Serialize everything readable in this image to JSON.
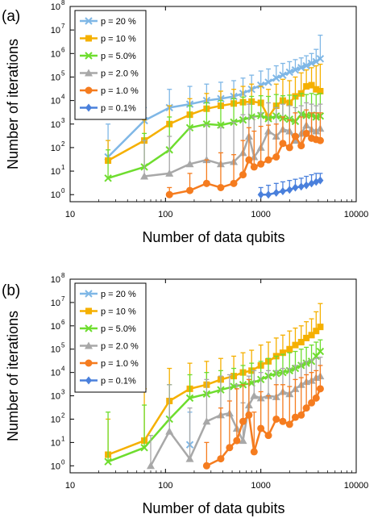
{
  "panels": [
    {
      "panel_label": "(a)",
      "chart_data": {
        "type": "line",
        "xlabel": "Number of data qubits",
        "ylabel": "Number of iterations",
        "xscale": "log",
        "yscale": "log",
        "xlim": [
          10,
          10000
        ],
        "ylim": [
          0.5,
          100000000
        ],
        "x_ticks": [
          10,
          100,
          1000,
          10000
        ],
        "x_tick_labels": [
          "10",
          "100",
          "1000",
          "10000"
        ],
        "y_ticks": [
          1,
          10,
          100,
          1000,
          10000,
          100000,
          1000000,
          10000000,
          100000000
        ],
        "y_tick_bases": [
          "10",
          "10",
          "10",
          "10",
          "10",
          "10",
          "10",
          "10",
          "10"
        ],
        "y_tick_exps": [
          "0",
          "1",
          "2",
          "3",
          "4",
          "5",
          "6",
          "7",
          "8"
        ],
        "legend_position": "top-left",
        "series": [
          {
            "name": "p = 20 %",
            "color": "#7fb7e6",
            "marker": "x",
            "x": [
              25,
              60,
              110,
              180,
              270,
              380,
              520,
              650,
              800,
              1000,
              1200,
              1450,
              1700,
              2000,
              2300,
              2650,
              3000,
              3400,
              3800,
              4200
            ],
            "y": [
              40,
              1400,
              5000,
              7000,
              10000,
              12000,
              15000,
              20000,
              30000,
              45000,
              60000,
              90000,
              120000,
              160000,
              200000,
              250000,
              300000,
              380000,
              450000,
              600000
            ],
            "err_high": [
              1000,
              5000,
              30000,
              40000,
              50000,
              60000,
              70000,
              90000,
              120000,
              180000,
              220000,
              300000,
              380000,
              450000,
              550000,
              650000,
              800000,
              1000000,
              1500000,
              6000000
            ]
          },
          {
            "name": "p = 10 %",
            "color": "#f5b000",
            "marker": "square",
            "x": [
              25,
              60,
              110,
              180,
              270,
              380,
              520,
              650,
              800,
              1000,
              1200,
              1450,
              1700,
              2000,
              2300,
              2650,
              3000,
              3400,
              3800,
              4200
            ],
            "y": [
              28,
              200,
              1000,
              2500,
              4500,
              6000,
              7500,
              8500,
              9000,
              8000,
              2000,
              6000,
              10000,
              8000,
              15000,
              20000,
              40000,
              45000,
              30000,
              25000
            ],
            "err_high": [
              200,
              1500,
              6000,
              12000,
              20000,
              25000,
              30000,
              40000,
              50000,
              40000,
              30000,
              50000,
              80000,
              70000,
              100000,
              150000,
              200000,
              250000,
              300000,
              350000
            ]
          },
          {
            "name": "p = 5.0%",
            "color": "#6edd2e",
            "marker": "x",
            "x": [
              25,
              60,
              110,
              180,
              270,
              380,
              520,
              650,
              800,
              1000,
              1200,
              1450,
              1700,
              2000,
              2300,
              2650,
              3000,
              3400,
              3800,
              4200
            ],
            "y": [
              5,
              15,
              80,
              700,
              1000,
              900,
              1200,
              1500,
              2000,
              2300,
              1700,
              2200,
              1800,
              1600,
              1300,
              2600,
              2300,
              2400,
              2000,
              2200
            ],
            "err_high": [
              80,
              400,
              2000,
              6000,
              8000,
              10000,
              12000,
              14000,
              15000,
              16000,
              15000,
              18000,
              16000,
              17000,
              16000,
              20000,
              18000,
              20000,
              18000,
              20000
            ]
          },
          {
            "name": "p = 2.0 %",
            "color": "#a8a8a8",
            "marker": "triangle",
            "x": [
              60,
              110,
              180,
              270,
              380,
              520,
              650,
              750,
              850,
              1000,
              1200,
              1450,
              1700,
              2000,
              2300,
              2650,
              3000,
              3400,
              3800,
              4200
            ],
            "y": [
              6,
              8,
              20,
              30,
              20,
              25,
              60,
              300,
              40,
              100,
              500,
              300,
              600,
              500,
              200,
              400,
              900,
              600,
              500,
              650
            ],
            "err_high": [
              200,
              300,
              600,
              900,
              700,
              1200,
              2500,
              7000,
              2000,
              3000,
              8000,
              5000,
              7000,
              6000,
              5000,
              6000,
              8000,
              7000,
              6000,
              7000
            ]
          },
          {
            "name": "p = 1.0 %",
            "color": "#f57c1f",
            "marker": "circle",
            "x": [
              110,
              180,
              270,
              380,
              520,
              650,
              750,
              850,
              1000,
              1200,
              1450,
              1700,
              2000,
              2300,
              2650,
              3000,
              3400,
              3800,
              4200
            ],
            "y": [
              1,
              1.5,
              3,
              2,
              3,
              7,
              30,
              15,
              20,
              30,
              40,
              150,
              100,
              300,
              120,
              400,
              250,
              220,
              200
            ],
            "err_high": [
              2,
              8,
              30,
              60,
              50,
              200,
              700,
              500,
              800,
              900,
              1000,
              2000,
              1500,
              3000,
              2000,
              4000,
              3000,
              3000,
              3000
            ]
          },
          {
            "name": "p = 0.1%",
            "color": "#4a80dc",
            "marker": "diamond",
            "x": [
              1000,
              1200,
              1450,
              1700,
              2000,
              2300,
              2650,
              3000,
              3400,
              3800,
              4200
            ],
            "y": [
              1,
              1,
              1.2,
              1.4,
              1.6,
              2,
              2.2,
              2.5,
              3,
              3.5,
              4
            ],
            "err_high": [
              2,
              2.5,
              3,
              3.5,
              4,
              4.5,
              5,
              6,
              7,
              8,
              8
            ]
          }
        ]
      }
    },
    {
      "panel_label": "(b)",
      "chart_data": {
        "type": "line",
        "xlabel": "Number of data qubits",
        "ylabel": "Number of iterations",
        "xscale": "log",
        "yscale": "log",
        "xlim": [
          10,
          10000
        ],
        "ylim": [
          0.5,
          100000000
        ],
        "x_ticks": [
          10,
          100,
          1000,
          10000
        ],
        "x_tick_labels": [
          "10",
          "100",
          "1000",
          "10000"
        ],
        "y_ticks": [
          1,
          10,
          100,
          1000,
          10000,
          100000,
          1000000,
          10000000,
          100000000
        ],
        "y_tick_bases": [
          "10",
          "10",
          "10",
          "10",
          "10",
          "10",
          "10",
          "10",
          "10"
        ],
        "y_tick_exps": [
          "0",
          "1",
          "2",
          "3",
          "4",
          "5",
          "6",
          "7",
          "8"
        ],
        "legend_position": "top-left",
        "series": [
          {
            "name": "p = 20 %",
            "color": "#7fb7e6",
            "marker": "x",
            "x": [
              180
            ],
            "y": [
              8
            ],
            "err_high": [
              200
            ]
          },
          {
            "name": "p = 10 %",
            "color": "#f5b000",
            "marker": "square",
            "x": [
              25,
              60,
              110,
              180,
              270,
              380,
              520,
              650,
              800,
              1000,
              1200,
              1450,
              1700,
              2000,
              2300,
              2650,
              3000,
              3400,
              3800,
              4200
            ],
            "y": [
              3,
              12,
              600,
              2000,
              3000,
              5000,
              7000,
              10000,
              12000,
              20000,
              30000,
              50000,
              70000,
              100000,
              150000,
              200000,
              300000,
              400000,
              600000,
              900000
            ],
            "err_high": [
              100,
              2000,
              15000,
              25000,
              30000,
              40000,
              50000,
              70000,
              90000,
              150000,
              200000,
              300000,
              400000,
              600000,
              800000,
              1000000,
              1500000,
              2000000,
              4000000,
              9000000
            ]
          },
          {
            "name": "p = 5.0%",
            "color": "#6edd2e",
            "marker": "x",
            "x": [
              25,
              60,
              110,
              180,
              270,
              380,
              520,
              650,
              800,
              1000,
              1200,
              1450,
              1700,
              2000,
              2300,
              2650,
              3000,
              3400,
              3800,
              4200
            ],
            "y": [
              1.5,
              6,
              100,
              800,
              1200,
              1800,
              2500,
              3000,
              3500,
              5000,
              7000,
              9000,
              10000,
              12000,
              15000,
              20000,
              25000,
              30000,
              50000,
              80000
            ],
            "err_high": [
              200,
              400,
              3000,
              8000,
              10000,
              12000,
              15000,
              20000,
              25000,
              30000,
              40000,
              50000,
              60000,
              70000,
              80000,
              100000,
              120000,
              150000,
              200000,
              250000
            ]
          },
          {
            "name": "p = 2.0 %",
            "color": "#a8a8a8",
            "marker": "triangle",
            "x": [
              70,
              110,
              180,
              270,
              380,
              470,
              560,
              650,
              750,
              850,
              1000,
              1200,
              1450,
              1700,
              2000,
              2300,
              2650,
              3000,
              3400,
              3800,
              4200
            ],
            "y": [
              1,
              30,
              2,
              80,
              150,
              180,
              40,
              12,
              400,
              1000,
              800,
              1000,
              900,
              1500,
              1200,
              2000,
              3000,
              4000,
              4500,
              6000,
              7000
            ],
            "err_high": [
              20,
              3000,
              300,
              5000,
              7000,
              8000,
              3000,
              500,
              7000,
              12000,
              10000,
              12000,
              12000,
              15000,
              15000,
              20000,
              25000,
              30000,
              35000,
              40000,
              45000
            ]
          },
          {
            "name": "p = 1.0 %",
            "color": "#f57c1f",
            "marker": "circle",
            "x": [
              270,
              380,
              470,
              560,
              650,
              750,
              850,
              1000,
              1200,
              1450,
              1700,
              2000,
              2300,
              2650,
              3000,
              3400,
              3800,
              4200
            ],
            "y": [
              1,
              2,
              6,
              12,
              80,
              150,
              4,
              40,
              20,
              100,
              80,
              60,
              120,
              150,
              300,
              500,
              800,
              2000
            ],
            "err_high": [
              10,
              300,
              600,
              2000,
              3000,
              5000,
              200,
              1500,
              1000,
              3000,
              3000,
              2500,
              5000,
              6000,
              8000,
              10000,
              12000,
              20000
            ]
          },
          {
            "name": "p = 0.1%",
            "color": "#4a80dc",
            "marker": "diamond",
            "x": [],
            "y": [],
            "err_high": []
          }
        ]
      }
    }
  ]
}
